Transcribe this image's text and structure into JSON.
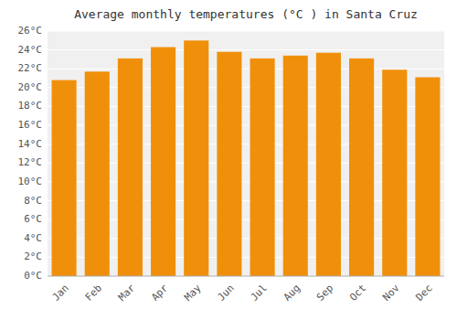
{
  "chart_data": {
    "type": "bar",
    "title": "Average monthly temperatures (°C ) in Santa Cruz",
    "categories": [
      "Jan",
      "Feb",
      "Mar",
      "Apr",
      "May",
      "Jun",
      "Jul",
      "Aug",
      "Sep",
      "Oct",
      "Nov",
      "Dec"
    ],
    "values": [
      20.8,
      21.7,
      23.1,
      24.3,
      25.0,
      23.8,
      23.1,
      23.4,
      23.7,
      23.1,
      21.9,
      21.1
    ],
    "color": "#F0900A",
    "ylim": [
      0,
      26
    ],
    "yticks": [
      {
        "value": 0,
        "label": "0°C"
      },
      {
        "value": 2,
        "label": "2°C"
      },
      {
        "value": 4,
        "label": "4°C"
      },
      {
        "value": 6,
        "label": "6°C"
      },
      {
        "value": 8,
        "label": "8°C"
      },
      {
        "value": 10,
        "label": "10°C"
      },
      {
        "value": 12,
        "label": "12°C"
      },
      {
        "value": 14,
        "label": "14°C"
      },
      {
        "value": 16,
        "label": "16°C"
      },
      {
        "value": 18,
        "label": "18°C"
      },
      {
        "value": 20,
        "label": "20°C"
      },
      {
        "value": 22,
        "label": "22°C"
      },
      {
        "value": 24,
        "label": "24°C"
      },
      {
        "value": 26,
        "label": "26°C"
      }
    ],
    "grid": true
  }
}
